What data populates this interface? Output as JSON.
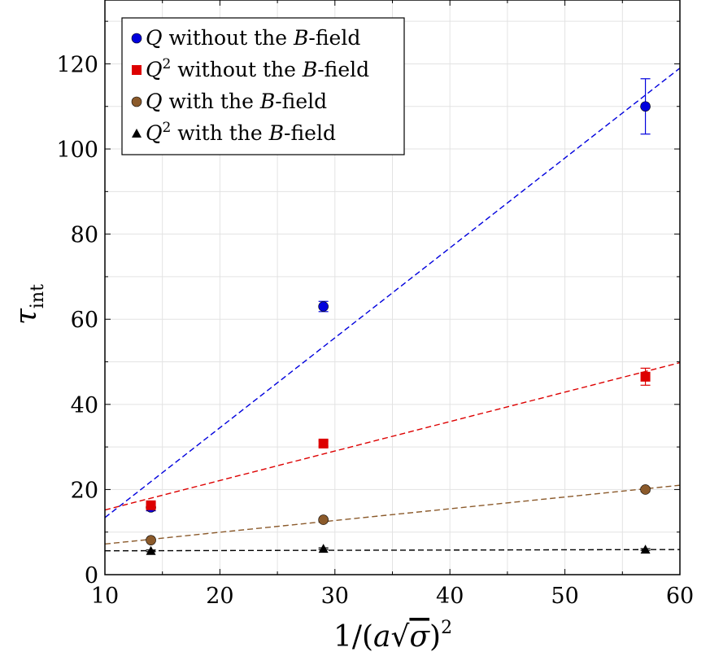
{
  "chart_data": {
    "type": "scatter",
    "title": "",
    "xlabel": "1/(a√σ)²",
    "ylabel": "τint",
    "xlim": [
      10,
      60
    ],
    "ylim": [
      0,
      135
    ],
    "xticks": [
      10,
      20,
      30,
      40,
      50,
      60
    ],
    "yticks": [
      0,
      20,
      40,
      60,
      80,
      100,
      120
    ],
    "xtick_labels": [
      "10",
      "20",
      "30",
      "40",
      "50",
      "60"
    ],
    "ytick_labels": [
      "0",
      "20",
      "40",
      "60",
      "80",
      "100",
      "120"
    ],
    "grid": true,
    "legend_position": "top-left",
    "series": [
      {
        "name": "Q without the B-field",
        "marker": "circle",
        "color": "#0000dd",
        "points": [
          {
            "x": 14,
            "y": 15.8,
            "err": 0.8
          },
          {
            "x": 29,
            "y": 63.0,
            "err": 1.2
          },
          {
            "x": 57,
            "y": 110.0,
            "err": 6.5
          }
        ],
        "fit": {
          "x0": 10,
          "y0": 13.4,
          "x1": 60,
          "y1": 119.0
        }
      },
      {
        "name": "Q² without the B-field",
        "marker": "square",
        "color": "#dd0000",
        "points": [
          {
            "x": 14,
            "y": 16.3,
            "err": 0.6
          },
          {
            "x": 29,
            "y": 30.8,
            "err": 0.6
          },
          {
            "x": 57,
            "y": 46.5,
            "err": 2.0
          }
        ],
        "fit": {
          "x0": 10,
          "y0": 15.2,
          "x1": 60,
          "y1": 49.8
        }
      },
      {
        "name": "Q with the B-field",
        "marker": "circle",
        "color": "#8b5a2b",
        "points": [
          {
            "x": 14,
            "y": 8.1,
            "err": 0.3
          },
          {
            "x": 29,
            "y": 12.9,
            "err": 0.3
          },
          {
            "x": 57,
            "y": 20.0,
            "err": 0.5
          }
        ],
        "fit": {
          "x0": 10,
          "y0": 7.2,
          "x1": 60,
          "y1": 21.0
        }
      },
      {
        "name": "Q² with the B-field",
        "marker": "triangle",
        "color": "#000000",
        "points": [
          {
            "x": 14,
            "y": 5.6,
            "err": 0.2
          },
          {
            "x": 29,
            "y": 6.1,
            "err": 0.2
          },
          {
            "x": 57,
            "y": 5.9,
            "err": 0.2
          }
        ],
        "fit": {
          "x0": 10,
          "y0": 5.6,
          "x1": 60,
          "y1": 5.9
        }
      }
    ],
    "legend": [
      {
        "sym": "Q",
        "sup": "",
        "text": " without the ",
        "b": "B",
        "tail": "-field"
      },
      {
        "sym": "Q",
        "sup": "2",
        "text": " without the ",
        "b": "B",
        "tail": "-field"
      },
      {
        "sym": "Q",
        "sup": "",
        "text": " with the ",
        "b": "B",
        "tail": "-field"
      },
      {
        "sym": "Q",
        "sup": "2",
        "text": " with the ",
        "b": "B",
        "tail": "-field"
      }
    ]
  }
}
